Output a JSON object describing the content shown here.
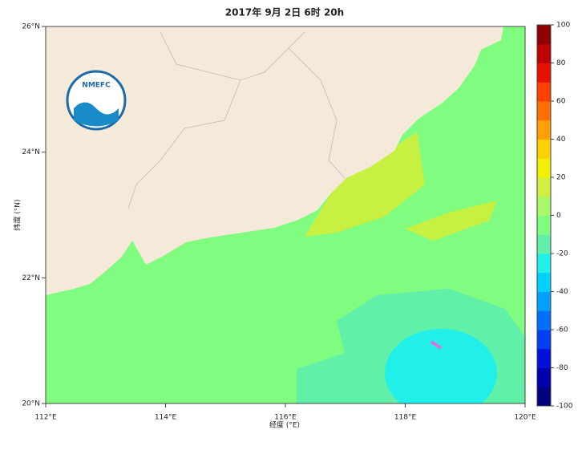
{
  "map": {
    "title": "2017年 9月 2日 6时   20h",
    "xlabel": "经度 (°E)",
    "ylabel": "纬度 (°N)",
    "xlim": [
      112,
      120
    ],
    "ylim": [
      20,
      26
    ],
    "xticks": [
      {
        "value": 112,
        "label": "112°E"
      },
      {
        "value": 114,
        "label": "114°E"
      },
      {
        "value": 116,
        "label": "116°E"
      },
      {
        "value": 118,
        "label": "118°E"
      },
      {
        "value": 120,
        "label": "120°E"
      }
    ],
    "yticks": [
      {
        "value": 20,
        "label": "20°N"
      },
      {
        "value": 22,
        "label": "22°N"
      },
      {
        "value": 24,
        "label": "24°N"
      },
      {
        "value": 26,
        "label": "26°N"
      }
    ],
    "logo": "NMEFC",
    "colorbar": {
      "lim": [
        -100,
        100
      ],
      "ticks": [
        100,
        80,
        60,
        40,
        20,
        0,
        -20,
        -40,
        -60,
        -80,
        -100
      ],
      "colors": [
        "#000080",
        "#0000b0",
        "#0010d8",
        "#0040f0",
        "#0070ff",
        "#00a0ff",
        "#00d0ff",
        "#20f0e8",
        "#60f0a8",
        "#80fc80",
        "#a8f868",
        "#d0f040",
        "#f0f000",
        "#ffd000",
        "#ffa000",
        "#ff7000",
        "#ff4000",
        "#e81000",
        "#c00000",
        "#900000"
      ]
    }
  }
}
